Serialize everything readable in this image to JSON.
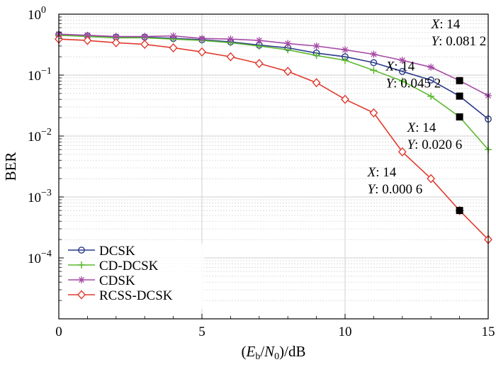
{
  "chart_data": {
    "type": "line",
    "xlabel": "(Eb/N0)/dB",
    "xlabel_parts": {
      "open": "(",
      "e": "E",
      "b": "b",
      "slash": "/",
      "n": "N",
      "zero": "0",
      "close": ")/dB"
    },
    "ylabel": "BER",
    "xlim": [
      0,
      15
    ],
    "ylim": [
      1e-05,
      1
    ],
    "yscale": "log",
    "grid": true,
    "legend_position": "bottom-left",
    "x_ticks": [
      {
        "v": 0,
        "label": "0"
      },
      {
        "v": 5,
        "label": "5"
      },
      {
        "v": 10,
        "label": "10"
      },
      {
        "v": 15,
        "label": "15"
      }
    ],
    "y_ticks": [
      {
        "v": 1,
        "base": "10",
        "exp": "0"
      },
      {
        "v": 0.1,
        "base": "10",
        "exp": "−1"
      },
      {
        "v": 0.01,
        "base": "10",
        "exp": "−2"
      },
      {
        "v": 0.001,
        "base": "10",
        "exp": "−3"
      },
      {
        "v": 0.0001,
        "base": "10",
        "exp": "−4"
      }
    ],
    "x": [
      0,
      1,
      2,
      3,
      4,
      5,
      6,
      7,
      8,
      9,
      10,
      11,
      12,
      13,
      14,
      15
    ],
    "series": [
      {
        "name": "DCSK",
        "color": "#2b3a8a",
        "marker": "circle",
        "values": [
          0.46,
          0.44,
          0.42,
          0.42,
          0.4,
          0.38,
          0.35,
          0.31,
          0.28,
          0.23,
          0.2,
          0.16,
          0.115,
          0.083,
          0.0452,
          0.019
        ]
      },
      {
        "name": "CD-DCSK",
        "color": "#5cb82f",
        "marker": "plus",
        "values": [
          0.45,
          0.43,
          0.41,
          0.41,
          0.39,
          0.37,
          0.34,
          0.3,
          0.26,
          0.21,
          0.175,
          0.12,
          0.08,
          0.045,
          0.0206,
          0.006
        ]
      },
      {
        "name": "CDSK",
        "color": "#a64aa6",
        "marker": "star",
        "values": [
          0.47,
          0.45,
          0.43,
          0.43,
          0.44,
          0.4,
          0.39,
          0.37,
          0.33,
          0.3,
          0.26,
          0.22,
          0.175,
          0.135,
          0.0812,
          0.046
        ]
      },
      {
        "name": "RCSS-DCSK",
        "color": "#e03a2e",
        "marker": "diamond",
        "values": [
          0.39,
          0.37,
          0.34,
          0.32,
          0.28,
          0.24,
          0.2,
          0.155,
          0.115,
          0.075,
          0.04,
          0.024,
          0.0055,
          0.002,
          0.0006,
          0.0002
        ]
      }
    ],
    "datatips": [
      {
        "x": 14,
        "y": 0.0812,
        "label_x": "X",
        "label_x_val": ": 14",
        "label_y": "Y",
        "label_y_val": ": 0.081 2"
      },
      {
        "x": 14,
        "y": 0.0452,
        "label_x": "X",
        "label_x_val": ": 14",
        "label_y": "Y",
        "label_y_val": ": 0.045 2"
      },
      {
        "x": 14,
        "y": 0.0206,
        "label_x": "X",
        "label_x_val": ": 14",
        "label_y": "Y",
        "label_y_val": ": 0.020 6"
      },
      {
        "x": 14,
        "y": 0.0006,
        "label_x": "X",
        "label_x_val": ": 14",
        "label_y": "Y",
        "label_y_val": ": 0.000 6"
      }
    ]
  }
}
